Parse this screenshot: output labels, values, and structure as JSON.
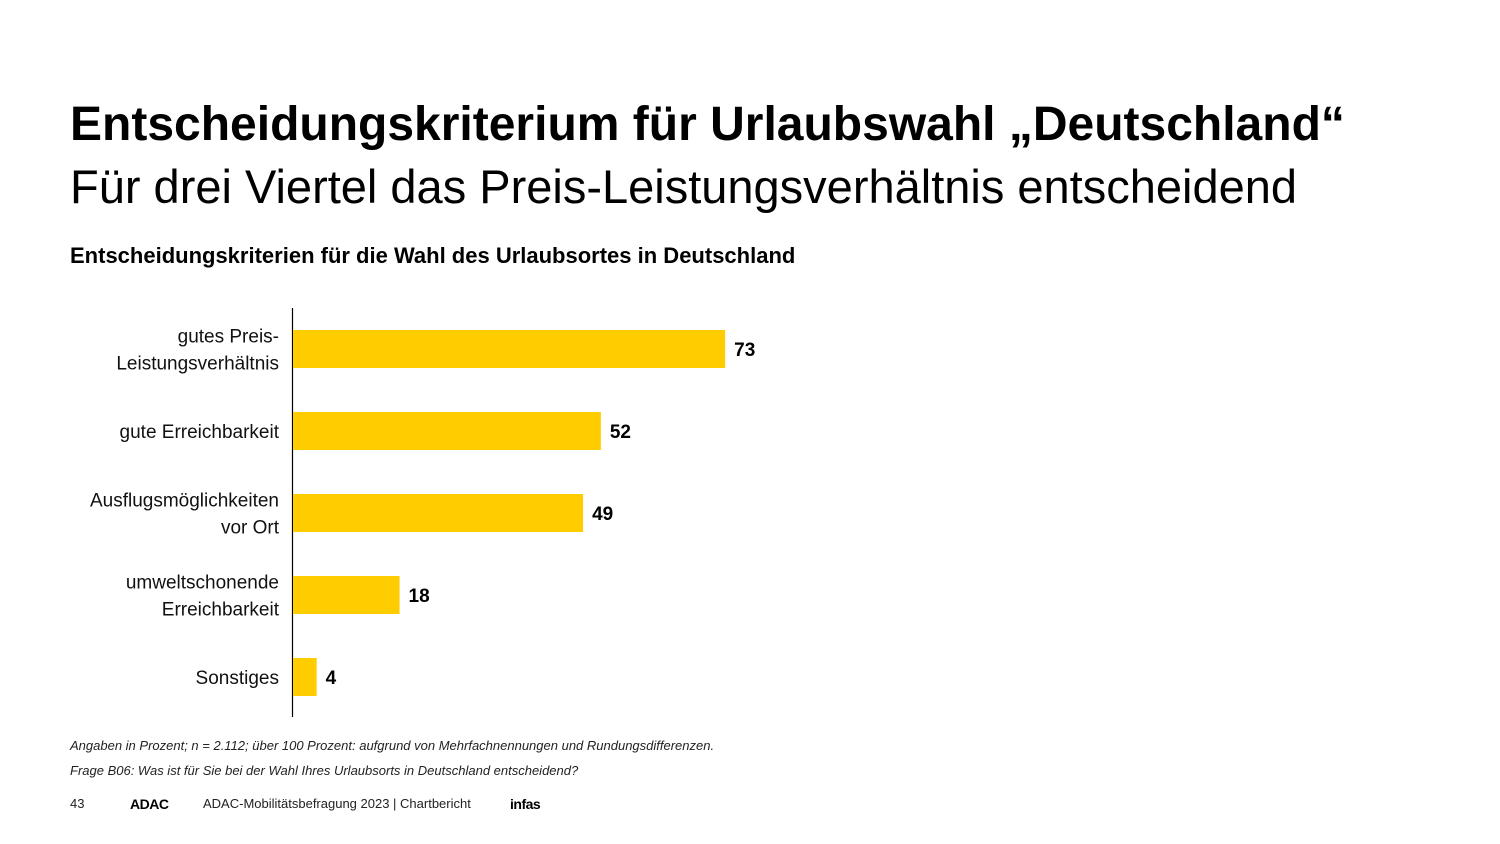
{
  "header": {
    "title": "Entscheidungskriterium für Urlaubswahl „Deutschland“",
    "subtitle": "Für drei Viertel das Preis-Leistungsverhältnis entscheidend"
  },
  "chart_data": {
    "type": "bar",
    "orientation": "horizontal",
    "title": "Entscheidungskriterien für die Wahl des Urlaubsortes in Deutschland",
    "categories": [
      [
        "gutes Preis-",
        "Leistungsverhältnis"
      ],
      [
        "gute Erreichbarkeit"
      ],
      [
        "Ausflugsmöglichkeiten",
        "vor Ort"
      ],
      [
        "umweltschonende",
        "Erreichbarkeit"
      ],
      [
        "Sonstiges"
      ]
    ],
    "values": [
      73,
      52,
      49,
      18,
      4
    ],
    "bar_color": "#FFCC00",
    "xlim": [
      0,
      100
    ],
    "grid": false,
    "legend": "none"
  },
  "notes": {
    "line1": "Angaben in Prozent;  n = 2.112; über 100 Prozent:  aufgrund von Mehrfachnennungen und Rundungsdifferenzen.",
    "line2": "Frage B06: Was ist für Sie bei der Wahl Ihres Urlaubsorts in Deutschland entscheidend?"
  },
  "footer": {
    "page_number": "43",
    "logo": "ADAC",
    "report": "ADAC-Mobilitätsbefragung 2023 | Chartbericht",
    "partner_logo": "infas"
  }
}
